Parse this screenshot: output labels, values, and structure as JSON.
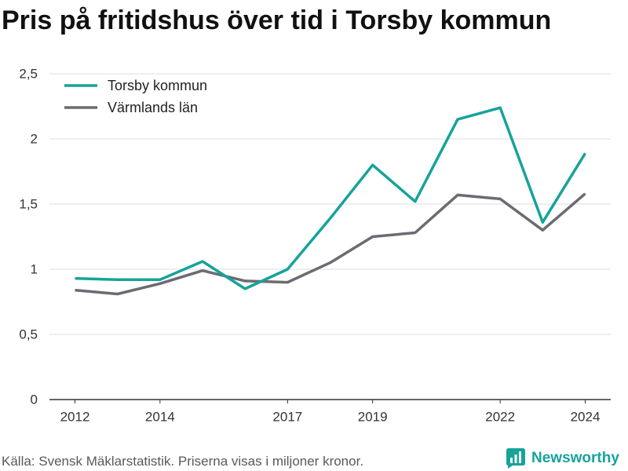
{
  "chart_data": {
    "type": "line",
    "title": "Pris på fritidshus över tid i Torsby kommun",
    "x": [
      2012,
      2013,
      2014,
      2015,
      2016,
      2017,
      2018,
      2019,
      2020,
      2021,
      2022,
      2023,
      2024
    ],
    "xlim": [
      2011.4,
      2024.6
    ],
    "ylim": [
      0,
      2.5
    ],
    "xticks": [
      2012,
      2014,
      2017,
      2019,
      2022,
      2024
    ],
    "yticks": [
      {
        "value": 0,
        "label": "0"
      },
      {
        "value": 0.5,
        "label": "0,5"
      },
      {
        "value": 1,
        "label": "1"
      },
      {
        "value": 1.5,
        "label": "1,5"
      },
      {
        "value": 2,
        "label": "2"
      },
      {
        "value": 2.5,
        "label": "2,5"
      }
    ],
    "grid": "horizontal",
    "legend": "top-left",
    "series": [
      {
        "name": "Torsby kommun",
        "color": "#16a39a",
        "values": [
          0.93,
          0.92,
          0.92,
          1.06,
          0.85,
          1.0,
          1.39,
          1.8,
          1.52,
          2.15,
          2.24,
          1.36,
          1.89
        ]
      },
      {
        "name": "Värmlands län",
        "color": "#6b6b73",
        "values": [
          0.84,
          0.81,
          0.89,
          0.99,
          0.91,
          0.9,
          1.05,
          1.25,
          1.28,
          1.57,
          1.54,
          1.3,
          1.58
        ]
      }
    ]
  },
  "footer": {
    "source": "Källa: Svensk Mäklarstatistik. Priserna visas i miljoner kronor."
  },
  "brand": {
    "name": "Newsworthy",
    "icon": "bar-chart-bubble-icon",
    "color": "#16a39a"
  },
  "colors": {
    "title": "#111111",
    "axis": "#333333",
    "grid": "#dddddd",
    "source_text": "#595959"
  }
}
